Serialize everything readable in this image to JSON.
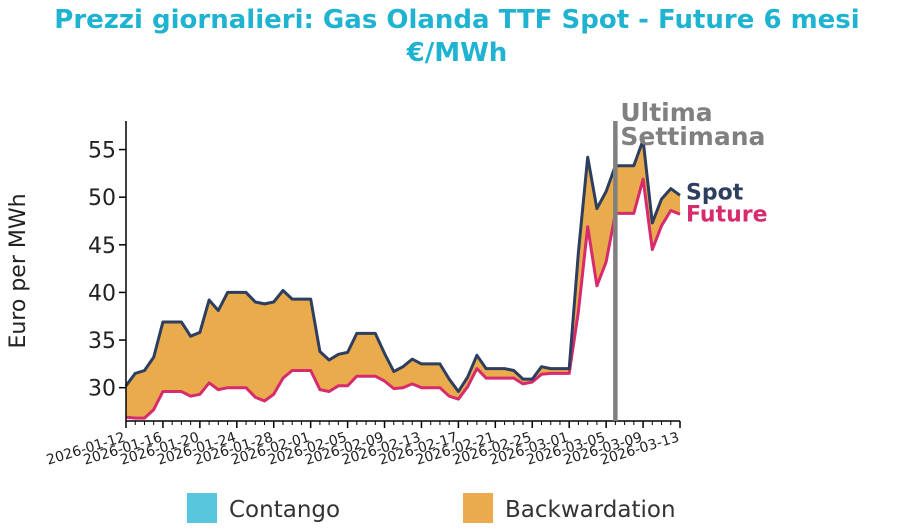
{
  "chart_data": {
    "type": "line",
    "title_line1": "Prezzi giornalieri: Gas Olanda TTF Spot - Future 6 mesi",
    "title_line2": "€/MWh",
    "ylabel": "Euro per MWh",
    "xlabel": "",
    "ylim": [
      26.5,
      58
    ],
    "yticks": [
      30,
      35,
      40,
      45,
      50,
      55
    ],
    "x_start": "2026-01-12",
    "x_end": "2026-03-13",
    "x_tick_labels": [
      "2026-01-12",
      "2026-01-16",
      "2026-01-20",
      "2026-01-24",
      "2026-01-28",
      "2026-02-01",
      "2026-02-05",
      "2026-02-09",
      "2026-02-13",
      "2026-02-17",
      "2026-02-21",
      "2026-02-25",
      "2026-03-01",
      "2026-03-05",
      "2026-03-09",
      "2026-03-13"
    ],
    "grid": false,
    "colors": {
      "title": "#1fb3d2",
      "spot": "#2d3e5e",
      "future": "#d62b6d",
      "backwardation": "#eaab4d",
      "contango": "#57c7dd",
      "marker": "#808080"
    },
    "series": [
      {
        "name": "Spot",
        "x": [
          "2026-01-12",
          "2026-01-13",
          "2026-01-14",
          "2026-01-15",
          "2026-01-16",
          "2026-01-17",
          "2026-01-18",
          "2026-01-19",
          "2026-01-20",
          "2026-01-21",
          "2026-01-22",
          "2026-01-23",
          "2026-01-24",
          "2026-01-25",
          "2026-01-26",
          "2026-01-27",
          "2026-01-28",
          "2026-01-29",
          "2026-01-30",
          "2026-01-31",
          "2026-02-01",
          "2026-02-02",
          "2026-02-03",
          "2026-02-04",
          "2026-02-05",
          "2026-02-06",
          "2026-02-07",
          "2026-02-08",
          "2026-02-09",
          "2026-02-10",
          "2026-02-11",
          "2026-02-12",
          "2026-02-13",
          "2026-02-14",
          "2026-02-15",
          "2026-02-16",
          "2026-02-17",
          "2026-02-18",
          "2026-02-19",
          "2026-02-20",
          "2026-02-21",
          "2026-02-22",
          "2026-02-23",
          "2026-02-24",
          "2026-02-25",
          "2026-02-26",
          "2026-02-27",
          "2026-02-28",
          "2026-03-01",
          "2026-03-02",
          "2026-03-03",
          "2026-03-04",
          "2026-03-05",
          "2026-03-06",
          "2026-03-07",
          "2026-03-08",
          "2026-03-09",
          "2026-03-10",
          "2026-03-11",
          "2026-03-12",
          "2026-03-13"
        ],
        "values": [
          30.2,
          31.5,
          31.8,
          33.2,
          36.9,
          36.9,
          36.9,
          35.4,
          35.8,
          39.2,
          38.1,
          40.0,
          40.0,
          40.0,
          39.0,
          38.8,
          39.0,
          40.2,
          39.3,
          39.3,
          39.3,
          33.8,
          32.9,
          33.5,
          33.7,
          35.7,
          35.7,
          35.7,
          33.6,
          31.7,
          32.2,
          33.0,
          32.5,
          32.5,
          32.5,
          30.9,
          29.6,
          31.1,
          33.4,
          32.0,
          32.0,
          32.0,
          31.8,
          30.9,
          30.9,
          32.2,
          32.0,
          32.0,
          32.0,
          44.2,
          54.2,
          48.8,
          50.6,
          53.3,
          53.3,
          53.3,
          56.0,
          47.3,
          49.8,
          50.9,
          50.2
        ]
      },
      {
        "name": "Future",
        "x": [
          "2026-01-12",
          "2026-01-13",
          "2026-01-14",
          "2026-01-15",
          "2026-01-16",
          "2026-01-17",
          "2026-01-18",
          "2026-01-19",
          "2026-01-20",
          "2026-01-21",
          "2026-01-22",
          "2026-01-23",
          "2026-01-24",
          "2026-01-25",
          "2026-01-26",
          "2026-01-27",
          "2026-01-28",
          "2026-01-29",
          "2026-01-30",
          "2026-01-31",
          "2026-02-01",
          "2026-02-02",
          "2026-02-03",
          "2026-02-04",
          "2026-02-05",
          "2026-02-06",
          "2026-02-07",
          "2026-02-08",
          "2026-02-09",
          "2026-02-10",
          "2026-02-11",
          "2026-02-12",
          "2026-02-13",
          "2026-02-14",
          "2026-02-15",
          "2026-02-16",
          "2026-02-17",
          "2026-02-18",
          "2026-02-19",
          "2026-02-20",
          "2026-02-21",
          "2026-02-22",
          "2026-02-23",
          "2026-02-24",
          "2026-02-25",
          "2026-02-26",
          "2026-02-27",
          "2026-02-28",
          "2026-03-01",
          "2026-03-02",
          "2026-03-03",
          "2026-03-04",
          "2026-03-05",
          "2026-03-06",
          "2026-03-07",
          "2026-03-08",
          "2026-03-09",
          "2026-03-10",
          "2026-03-11",
          "2026-03-12",
          "2026-03-13"
        ],
        "values": [
          26.9,
          26.8,
          26.8,
          27.7,
          29.6,
          29.6,
          29.6,
          29.1,
          29.3,
          30.5,
          29.8,
          30.0,
          30.0,
          30.0,
          29.0,
          28.6,
          29.3,
          31.0,
          31.8,
          31.8,
          31.8,
          29.8,
          29.6,
          30.2,
          30.2,
          31.2,
          31.2,
          31.2,
          30.7,
          29.9,
          30.0,
          30.4,
          30.0,
          30.0,
          30.0,
          29.1,
          28.8,
          30.1,
          32.0,
          31.0,
          31.0,
          31.0,
          31.0,
          30.4,
          30.6,
          31.4,
          31.5,
          31.5,
          31.5,
          38.0,
          46.9,
          40.7,
          43.2,
          48.3,
          48.3,
          48.3,
          51.9,
          44.5,
          47.0,
          48.6,
          48.2
        ]
      }
    ],
    "annotation": {
      "x": "2026-03-06",
      "line1": "Ultima",
      "line2": "Settimana"
    },
    "legend": {
      "placement": "bottom",
      "items": [
        {
          "name": "Contango",
          "color_key": "contango"
        },
        {
          "name": "Backwardation",
          "color_key": "backwardation"
        }
      ]
    }
  }
}
